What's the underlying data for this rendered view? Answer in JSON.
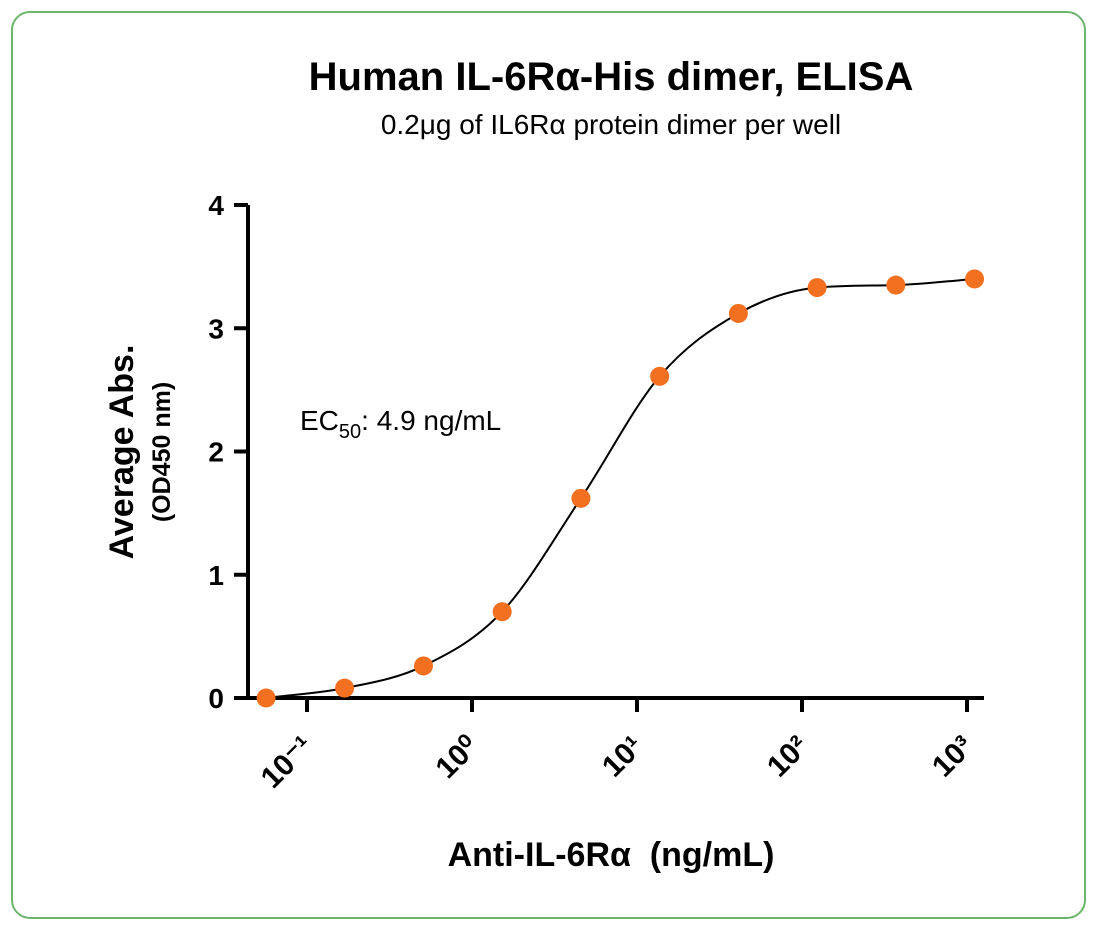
{
  "chart_data": {
    "type": "scatter",
    "title": "Human IL-6Rα-His dimer, ELISA",
    "subtitle": "0.2μg of IL6Rα protein dimer per well",
    "ylabel": "Average Abs.",
    "ylabel_sub": "(OD450 nm)",
    "xlabel": "Anti-IL-6Rα  (ng/mL)",
    "annotation": {
      "prefix": "EC",
      "subscript": "50",
      "text": ": 4.9 ng/mL"
    },
    "x": [
      0.0565,
      0.169,
      0.508,
      1.524,
      4.572,
      13.72,
      41.15,
      123.5,
      370.4,
      1111
    ],
    "values": [
      0.0,
      0.08,
      0.26,
      0.7,
      1.62,
      2.61,
      3.12,
      3.33,
      3.35,
      3.4
    ],
    "color": "#f37021",
    "line_color": "#000000",
    "xscale": "log",
    "xlim": [
      0.0439,
      1250
    ],
    "xticks": [
      {
        "value": 0.1,
        "label": "10⁻¹"
      },
      {
        "value": 1,
        "label": "10⁰"
      },
      {
        "value": 10,
        "label": "10¹"
      },
      {
        "value": 100,
        "label": "10²"
      },
      {
        "value": 1000,
        "label": "10³"
      }
    ],
    "ylim": [
      0,
      4
    ],
    "yticks": [
      0,
      1,
      2,
      3,
      4
    ]
  }
}
